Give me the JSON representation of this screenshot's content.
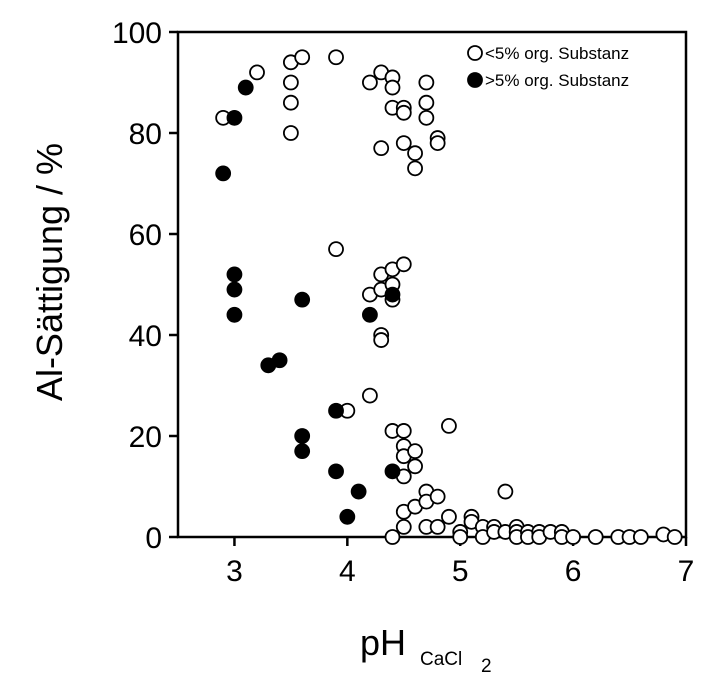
{
  "chart_data": {
    "type": "scatter",
    "xlabel": "pH",
    "xlabel_subscript": "CaCl",
    "xlabel_subscript2": "2",
    "ylabel": "Al-Sättigung  /  %",
    "xlim": [
      2.5,
      7
    ],
    "ylim": [
      0,
      100
    ],
    "xticks": [
      "3",
      "4",
      "5",
      "6",
      "7"
    ],
    "yticks": [
      "0",
      "20",
      "40",
      "60",
      "80",
      "100"
    ],
    "legend_position": "top-right",
    "grid": false,
    "series": [
      {
        "name": "<5% org. Substanz",
        "marker": "open-circle",
        "points": [
          [
            2.9,
            83
          ],
          [
            3.2,
            92
          ],
          [
            3.5,
            94
          ],
          [
            3.5,
            90
          ],
          [
            3.5,
            86
          ],
          [
            3.5,
            80
          ],
          [
            3.6,
            95
          ],
          [
            3.9,
            95
          ],
          [
            4.2,
            90
          ],
          [
            4.3,
            92
          ],
          [
            4.3,
            77
          ],
          [
            4.4,
            91
          ],
          [
            4.4,
            89
          ],
          [
            4.4,
            85
          ],
          [
            4.5,
            85
          ],
          [
            4.5,
            84
          ],
          [
            4.5,
            78
          ],
          [
            4.6,
            76
          ],
          [
            4.6,
            73
          ],
          [
            4.7,
            90
          ],
          [
            4.7,
            86
          ],
          [
            4.7,
            83
          ],
          [
            4.8,
            79
          ],
          [
            4.8,
            78
          ],
          [
            3.9,
            57
          ],
          [
            4.2,
            48
          ],
          [
            4.3,
            52
          ],
          [
            4.3,
            49
          ],
          [
            4.3,
            40
          ],
          [
            4.3,
            39
          ],
          [
            4.4,
            53
          ],
          [
            4.4,
            50
          ],
          [
            4.4,
            47
          ],
          [
            4.5,
            54
          ],
          [
            4.0,
            25
          ],
          [
            4.2,
            28
          ],
          [
            4.4,
            21
          ],
          [
            4.5,
            21
          ],
          [
            4.5,
            18
          ],
          [
            4.5,
            16
          ],
          [
            4.5,
            12
          ],
          [
            4.6,
            17
          ],
          [
            4.6,
            14
          ],
          [
            4.9,
            22
          ],
          [
            4.4,
            0
          ],
          [
            4.5,
            2
          ],
          [
            4.5,
            5
          ],
          [
            4.6,
            6
          ],
          [
            4.7,
            9
          ],
          [
            4.7,
            7
          ],
          [
            4.7,
            2
          ],
          [
            4.8,
            8
          ],
          [
            4.8,
            2
          ],
          [
            4.9,
            4
          ],
          [
            5.0,
            1
          ],
          [
            5.0,
            0
          ],
          [
            5.1,
            4
          ],
          [
            5.1,
            3
          ],
          [
            5.2,
            2
          ],
          [
            5.2,
            0
          ],
          [
            5.3,
            2
          ],
          [
            5.3,
            1
          ],
          [
            5.4,
            9
          ],
          [
            5.4,
            1
          ],
          [
            5.5,
            2
          ],
          [
            5.5,
            1
          ],
          [
            5.5,
            0
          ],
          [
            5.6,
            1
          ],
          [
            5.6,
            0
          ],
          [
            5.7,
            1
          ],
          [
            5.7,
            0
          ],
          [
            5.8,
            1
          ],
          [
            5.9,
            1
          ],
          [
            5.9,
            0
          ],
          [
            6.0,
            0
          ],
          [
            6.2,
            0
          ],
          [
            6.4,
            0
          ],
          [
            6.5,
            0
          ],
          [
            6.6,
            0
          ],
          [
            6.8,
            0.5
          ],
          [
            6.9,
            0
          ]
        ]
      },
      {
        "name": ">5% org. Substanz",
        "marker": "filled-circle",
        "points": [
          [
            2.9,
            72
          ],
          [
            3.0,
            83
          ],
          [
            3.1,
            89
          ],
          [
            3.0,
            52
          ],
          [
            3.0,
            49
          ],
          [
            3.0,
            44
          ],
          [
            3.3,
            34
          ],
          [
            3.4,
            35
          ],
          [
            3.6,
            47
          ],
          [
            3.6,
            20
          ],
          [
            3.6,
            17
          ],
          [
            3.9,
            25
          ],
          [
            3.9,
            13
          ],
          [
            4.0,
            4
          ],
          [
            4.1,
            9
          ],
          [
            4.2,
            44
          ],
          [
            4.4,
            48
          ],
          [
            4.4,
            13
          ]
        ]
      }
    ]
  }
}
